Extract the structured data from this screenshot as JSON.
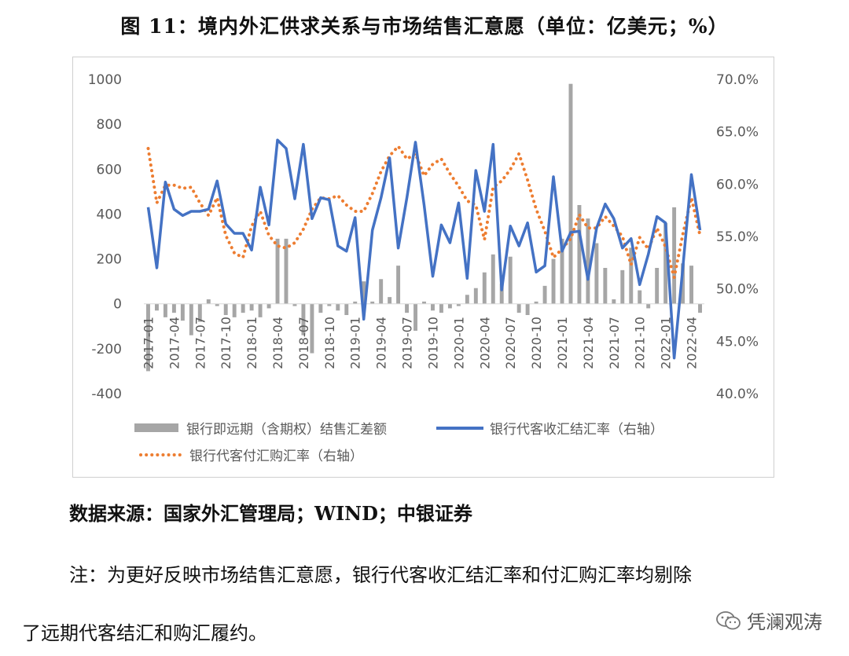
{
  "title": "图 11：境内外汇供求关系与市场结售汇意愿（单位：亿美元；%）",
  "source": "数据来源：国家外汇管理局；WIND；中银证券",
  "note_line1": "注：为更好反映市场结售汇意愿，银行代客收汇结汇率和付汇购汇率均剔除",
  "note_line2": "了远期代客结汇和购汇履约。",
  "watermark": "凭澜观涛",
  "colors": {
    "bar": "#a6a6a6",
    "line": "#4472c4",
    "dot": "#ed7d31"
  },
  "chart_data": {
    "type": "bar+line",
    "x": [
      "2017-01",
      "2017-02",
      "2017-03",
      "2017-04",
      "2017-05",
      "2017-06",
      "2017-07",
      "2017-08",
      "2017-09",
      "2017-10",
      "2017-11",
      "2017-12",
      "2018-01",
      "2018-02",
      "2018-03",
      "2018-04",
      "2018-05",
      "2018-06",
      "2018-07",
      "2018-08",
      "2018-09",
      "2018-10",
      "2018-11",
      "2018-12",
      "2019-01",
      "2019-02",
      "2019-03",
      "2019-04",
      "2019-05",
      "2019-06",
      "2019-07",
      "2019-08",
      "2019-09",
      "2019-10",
      "2019-11",
      "2019-12",
      "2020-01",
      "2020-02",
      "2020-03",
      "2020-04",
      "2020-05",
      "2020-06",
      "2020-07",
      "2020-08",
      "2020-09",
      "2020-10",
      "2020-11",
      "2020-12",
      "2021-01",
      "2021-02",
      "2021-03",
      "2021-04",
      "2021-05",
      "2021-06",
      "2021-07",
      "2021-08",
      "2021-09",
      "2021-10",
      "2021-11",
      "2021-12",
      "2022-01",
      "2022-02",
      "2022-03",
      "2022-04",
      "2022-05"
    ],
    "x_tick_labels": [
      "2017-01",
      "2017-04",
      "2017-07",
      "2017-10",
      "2018-01",
      "2018-04",
      "2018-07",
      "2018-10",
      "2019-01",
      "2019-04",
      "2019-07",
      "2019-10",
      "2020-01",
      "2020-04",
      "2020-07",
      "2020-10",
      "2021-01",
      "2021-04",
      "2021-07",
      "2021-10",
      "2022-01",
      "2022-04"
    ],
    "y_left": {
      "min": -400,
      "max": 1000,
      "step": 200,
      "ticks": [
        "-400",
        "-200",
        "0",
        "200",
        "400",
        "600",
        "800",
        "1000"
      ]
    },
    "y_right": {
      "min": 40,
      "max": 70,
      "step": 5,
      "ticks": [
        "40.0%",
        "45.0%",
        "50.0%",
        "55.0%",
        "60.0%",
        "65.0%",
        "70.0%"
      ]
    },
    "legend": {
      "position": "bottom",
      "entries": [
        "银行即远期（含期权）结售汇差额",
        "银行代客收汇结汇率（右轴）",
        "银行代客付汇购汇率（右轴）"
      ]
    },
    "series": [
      {
        "name": "银行即远期（含期权）结售汇差额",
        "kind": "bar",
        "axis": "left",
        "values": [
          -300,
          -30,
          -60,
          -40,
          -75,
          -140,
          -80,
          20,
          -10,
          -50,
          -60,
          -40,
          -30,
          -60,
          -20,
          290,
          290,
          -10,
          -140,
          -220,
          -40,
          -10,
          -30,
          -50,
          10,
          100,
          10,
          110,
          30,
          170,
          -40,
          -120,
          10,
          -30,
          -40,
          -20,
          -10,
          40,
          70,
          140,
          220,
          90,
          210,
          -40,
          -50,
          10,
          80,
          200,
          290,
          980,
          440,
          380,
          270,
          160,
          20,
          150,
          250,
          60,
          -20,
          160,
          360,
          430,
          180,
          170,
          -40
        ]
      },
      {
        "name": "银行代客收汇结汇率（右轴）",
        "kind": "line",
        "axis": "right",
        "values": [
          57.8,
          52.0,
          60.2,
          57.6,
          57.0,
          57.4,
          57.4,
          57.6,
          60.3,
          56.2,
          55.3,
          55.3,
          53.7,
          59.7,
          56.1,
          64.2,
          63.4,
          58.6,
          63.8,
          56.7,
          58.7,
          58.5,
          54.1,
          53.6,
          56.8,
          47.1,
          55.6,
          58.7,
          62.5,
          53.9,
          58.7,
          64.0,
          58.0,
          51.2,
          56.1,
          54.4,
          58.2,
          51.0,
          61.3,
          57.4,
          63.8,
          49.9,
          56.0,
          54.1,
          56.3,
          51.6,
          52.2,
          60.7,
          53.6,
          55.4,
          55.5,
          50.9,
          55.8,
          58.1,
          56.7,
          53.9,
          54.8,
          50.4,
          53.3,
          56.9,
          56.3,
          43.4,
          52.0,
          60.9,
          55.6
        ]
      },
      {
        "name": "银行代客付汇购汇率（右轴）",
        "kind": "dotted-line",
        "axis": "right",
        "values": [
          63.4,
          58.2,
          59.9,
          59.9,
          59.6,
          59.7,
          58.2,
          57.0,
          58.7,
          55.1,
          53.4,
          53.0,
          56.0,
          57.4,
          55.1,
          54.1,
          53.9,
          54.4,
          55.7,
          57.6,
          58.7,
          58.6,
          58.9,
          58.0,
          57.4,
          57.4,
          59.1,
          61.2,
          62.7,
          63.6,
          62.4,
          62.9,
          60.8,
          61.9,
          62.4,
          61.0,
          59.8,
          58.4,
          58.0,
          54.7,
          59.7,
          60.3,
          61.4,
          62.9,
          60.4,
          57.6,
          55.5,
          53.0,
          53.8,
          54.8,
          57.1,
          55.8,
          55.8,
          56.9,
          56.0,
          55.0,
          52.3,
          54.9,
          53.8,
          55.8,
          54.0,
          51.1,
          55.2,
          58.7,
          55.1
        ]
      }
    ]
  }
}
